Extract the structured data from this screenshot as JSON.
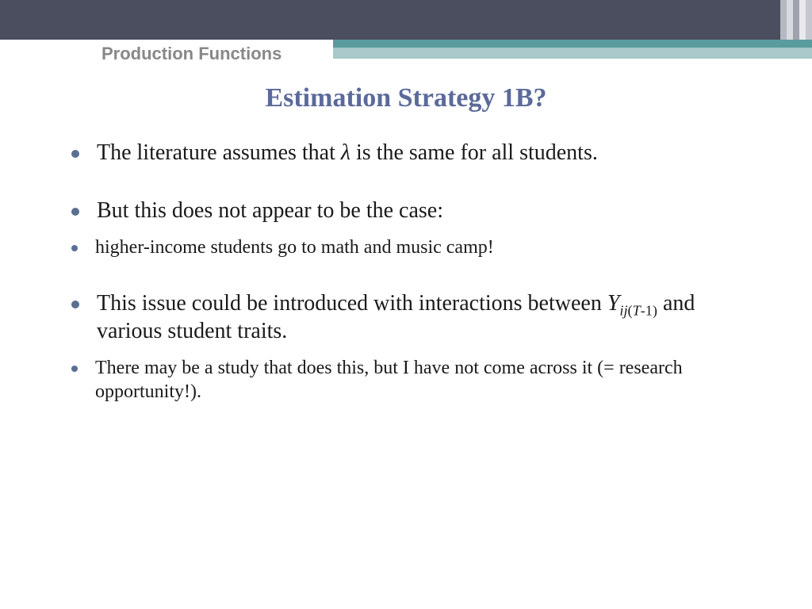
{
  "colors": {
    "top_bar": "#4a4e5e",
    "teal_dark": "#5a9b9e",
    "teal_light": "#a8c8ca",
    "title": "#5b6a9a",
    "header_label": "#888888",
    "bullet": "#5a7090",
    "body_text": "#1a1a1a",
    "background": "#ffffff",
    "stripes": [
      "#b5b8c0",
      "#d8dadf",
      "#9ea2ad",
      "#e8e9ec",
      "#c4c7cf"
    ]
  },
  "typography": {
    "title_fontsize": 34,
    "header_fontsize": 22,
    "body_large": 28,
    "body_medium": 24,
    "title_family": "Georgia",
    "header_family": "Trebuchet MS"
  },
  "header": {
    "label": "Production Functions"
  },
  "title": "Estimation Strategy 1B?",
  "bullets": [
    {
      "size": "large",
      "pre": "The literature assumes that ",
      "sym": "λ",
      "post": " is the same for all students."
    },
    {
      "size": "large",
      "text": "But this does not appear to be the case:"
    },
    {
      "size": "medium",
      "text": "higher-income students go to math and music camp!"
    },
    {
      "size": "large",
      "pre": "This issue could be introduced with interactions between ",
      "yvar": "Y",
      "ysub_it": "ij",
      "ysub_up": "(",
      "ysub_it2": "T",
      "ysub_up2": "-1)",
      "post": " and various student traits."
    },
    {
      "size": "medium",
      "text": "There may be a study that does this, but I have not come across it (= research opportunity!)."
    }
  ]
}
